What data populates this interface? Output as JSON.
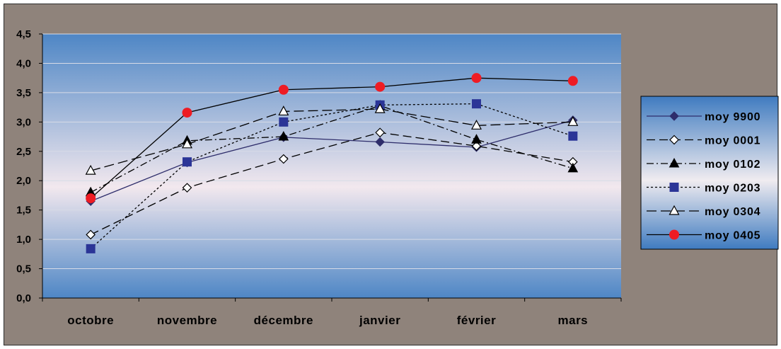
{
  "colors": {
    "outer_background": "#8f837b",
    "plot_top": "#4e86c5",
    "plot_mid": "#f2e8ee",
    "plot_bottom": "#4e86c5",
    "legend_top": "#3f7bc0",
    "legend_mid": "#f0ecf0",
    "legend_bottom": "#3f7bc0",
    "gridline": "#d7dbe6",
    "series_9900": "#2e2d6b",
    "series_marker_0203": "#2b3597",
    "series_marker_0405": "#ee1c24"
  },
  "chart_data": {
    "type": "line",
    "title": "",
    "xlabel": "",
    "ylabel": "",
    "categories": [
      "octobre",
      "novembre",
      "décembre",
      "janvier",
      "février",
      "mars"
    ],
    "ylim": [
      0,
      4.5
    ],
    "y_ticks": [
      "0,0",
      "0,5",
      "1,0",
      "1,5",
      "2,0",
      "2,5",
      "3,0",
      "3,5",
      "4,0",
      "4,5"
    ],
    "grid": true,
    "legend_position": "right",
    "series": [
      {
        "name": "moy 9900",
        "values": [
          1.65,
          2.31,
          2.74,
          2.66,
          2.57,
          3.03
        ],
        "line_style": "solid",
        "marker": "diamond-filled"
      },
      {
        "name": "moy 0001",
        "values": [
          1.08,
          1.88,
          2.37,
          2.82,
          2.59,
          2.32
        ],
        "line_style": "long-dash",
        "marker": "diamond-open"
      },
      {
        "name": "moy 0102",
        "values": [
          1.8,
          2.68,
          2.75,
          3.28,
          2.7,
          2.21
        ],
        "line_style": "dash-dot",
        "marker": "triangle-filled"
      },
      {
        "name": "moy 0203",
        "values": [
          0.84,
          2.32,
          3.0,
          3.29,
          3.31,
          2.76
        ],
        "line_style": "dotted",
        "marker": "square-filled"
      },
      {
        "name": "moy 0304",
        "values": [
          2.17,
          2.62,
          3.18,
          3.22,
          2.94,
          3.0
        ],
        "line_style": "dash",
        "marker": "triangle-open"
      },
      {
        "name": "moy 0405",
        "values": [
          1.7,
          3.16,
          3.55,
          3.6,
          3.75,
          3.7
        ],
        "line_style": "solid",
        "marker": "circle-filled"
      }
    ]
  }
}
